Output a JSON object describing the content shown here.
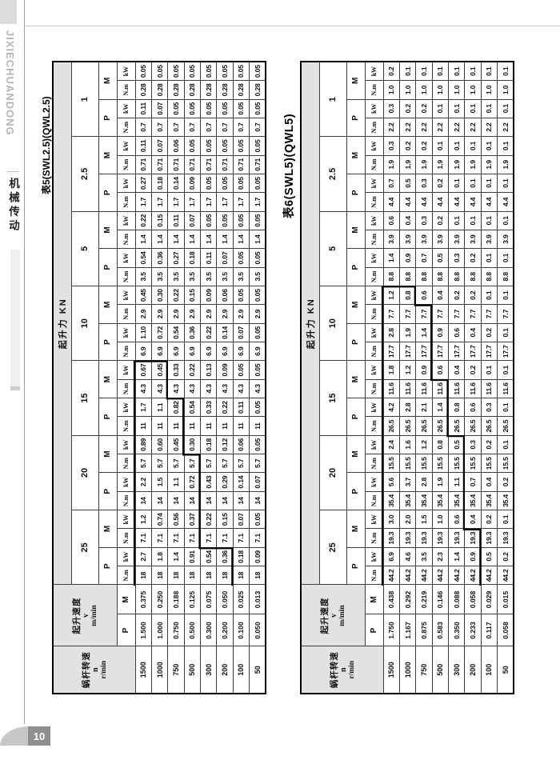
{
  "sidebar": {
    "brand": "JIXIECHUANDONG",
    "section": "机械传动"
  },
  "footer": {
    "page_number": "10"
  },
  "tables": [
    {
      "title": "表5(SWL2.5)(QWL2.5)",
      "header": {
        "n_title": "蜗杆转速",
        "n_sym": "n",
        "n_unit": "r/min",
        "v_title": "起升速度",
        "v_sym": "v",
        "v_unit": "m/min",
        "force_title": "起升力 KN",
        "groups": [
          "25",
          "20",
          "15",
          "10",
          "5",
          "2.5",
          "1"
        ],
        "p_label": "P",
        "m_label": "M",
        "torque_unit": "N.m",
        "power_unit": "kW"
      },
      "rows": [
        {
          "n": "1500",
          "vp": "1.500",
          "vm": "0.375",
          "cells": [
            "18",
            "2.7",
            "7.1",
            "1.2",
            "14",
            "2.2",
            "5.7",
            "0.89",
            "11",
            "1.7",
            "4.3",
            "0.67",
            "6.9",
            "1.10",
            "2.9",
            "0.45",
            "3.5",
            "0.54",
            "1.4",
            "0.22",
            "1.7",
            "0.27",
            "0.71",
            "0.11",
            "0.7",
            "0.11",
            "0.28",
            "0.05"
          ]
        },
        {
          "n": "1000",
          "vp": "1.000",
          "vm": "0.250",
          "cells": [
            "18",
            "1.8",
            "7.1",
            "0.74",
            "14",
            "1.5",
            "5.7",
            "0.60",
            "11",
            "1.1",
            "4.3",
            "0.45",
            "6.9",
            "0.72",
            "2.9",
            "0.30",
            "3.5",
            "0.36",
            "1.4",
            "0.15",
            "1.7",
            "0.18",
            "0.71",
            "0.07",
            "0.7",
            "0.07",
            "0.28",
            "0.05"
          ]
        },
        {
          "n": "750",
          "vp": "0.750",
          "vm": "0.188",
          "cells": [
            "18",
            "1.4",
            "7.1",
            "0.56",
            "14",
            "1.1",
            "5.7",
            "0.45",
            "11",
            "0.82",
            "4.3",
            "0.33",
            "6.9",
            "0.54",
            "2.9",
            "0.22",
            "3.5",
            "0.27",
            "1.4",
            "0.11",
            "1.7",
            "0.14",
            "0.71",
            "0.06",
            "0.7",
            "0.05",
            "0.28",
            "0.05"
          ]
        },
        {
          "n": "500",
          "vp": "0.500",
          "vm": "0.125",
          "cells": [
            "18",
            "0.91",
            "7.1",
            "0.37",
            "14",
            "0.72",
            "5.7",
            "0.30",
            "11",
            "0.54",
            "4.3",
            "0.22",
            "6.9",
            "0.36",
            "2.9",
            "0.15",
            "3.5",
            "0.18",
            "1.4",
            "0.07",
            "1.7",
            "0.09",
            "0.71",
            "0.05",
            "0.7",
            "0.05",
            "0.28",
            "0.05"
          ]
        },
        {
          "n": "300",
          "vp": "0.300",
          "vm": "0.075",
          "cells": [
            "18",
            "0.54",
            "7.1",
            "0.22",
            "14",
            "0.43",
            "5.7",
            "0.18",
            "11",
            "0.33",
            "4.3",
            "0.13",
            "6.9",
            "0.22",
            "2.9",
            "0.09",
            "3.5",
            "0.11",
            "1.4",
            "0.05",
            "1.7",
            "0.05",
            "0.71",
            "0.05",
            "0.7",
            "0.05",
            "0.28",
            "0.05"
          ]
        },
        {
          "n": "200",
          "vp": "0.200",
          "vm": "0.050",
          "cells": [
            "18",
            "0.36",
            "7.1",
            "0.15",
            "14",
            "0.29",
            "5.7",
            "0.12",
            "11",
            "0.22",
            "4.3",
            "0.09",
            "6.9",
            "0.14",
            "2.9",
            "0.06",
            "3.5",
            "0.07",
            "1.4",
            "0.05",
            "1.7",
            "0.05",
            "0.71",
            "0.05",
            "0.7",
            "0.05",
            "0.28",
            "0.05"
          ]
        },
        {
          "n": "100",
          "vp": "0.100",
          "vm": "0.025",
          "cells": [
            "18",
            "0.18",
            "7.1",
            "0.07",
            "14",
            "0.14",
            "5.7",
            "0.06",
            "11",
            "0.11",
            "4.3",
            "0.05",
            "6.9",
            "0.07",
            "2.9",
            "0.05",
            "3.5",
            "0.05",
            "1.4",
            "0.05",
            "1.7",
            "0.05",
            "0.71",
            "0.05",
            "0.7",
            "0.05",
            "0.28",
            "0.05"
          ]
        },
        {
          "n": "50",
          "vp": "0.050",
          "vm": "0.013",
          "cells": [
            "18",
            "0.09",
            "7.1",
            "0.05",
            "14",
            "0.07",
            "5.7",
            "0.05",
            "11",
            "0.05",
            "4.3",
            "0.05",
            "6.9",
            "0.05",
            "2.9",
            "0.05",
            "3.5",
            "0.05",
            "1.4",
            "0.05",
            "1.7",
            "0.05",
            "0.71",
            "0.05",
            "0.7",
            "0.05",
            "0.28",
            "0.05"
          ]
        }
      ]
    },
    {
      "title": "表6(SWL5)(QWL5)",
      "header": {
        "n_title": "蜗杆转速",
        "n_sym": "n",
        "n_unit": "r/min",
        "v_title": "起升速度",
        "v_sym": "v",
        "v_unit": "m/min",
        "force_title": "起升力 KN",
        "groups": [
          "25",
          "20",
          "15",
          "10",
          "5",
          "2.5",
          "1"
        ],
        "p_label": "P",
        "m_label": "M",
        "torque_unit": "N.m",
        "power_unit": "kW"
      },
      "rows": [
        {
          "n": "1500",
          "vp": "1.750",
          "vm": "0.438",
          "cells": [
            "44.2",
            "6.9",
            "19.3",
            "3.0",
            "35.4",
            "5.6",
            "15.5",
            "2.4",
            "26.5",
            "4.2",
            "11.6",
            "1.8",
            "17.7",
            "2.8",
            "7.7",
            "1.2",
            "8.8",
            "1.4",
            "3.9",
            "0.6",
            "4.4",
            "0.7",
            "1.9",
            "0.3",
            "2.2",
            "0.3",
            "1.0",
            "0.2"
          ]
        },
        {
          "n": "1000",
          "vp": "1.167",
          "vm": "0.292",
          "cells": [
            "44.2",
            "4.6",
            "19.3",
            "2.0",
            "35.4",
            "3.7",
            "15.5",
            "1.6",
            "26.5",
            "2.8",
            "11.6",
            "1.2",
            "17.7",
            "1.9",
            "7.7",
            "0.8",
            "8.8",
            "0.9",
            "3.9",
            "0.4",
            "4.4",
            "0.5",
            "1.9",
            "0.2",
            "2.2",
            "0.2",
            "1.0",
            "0.1"
          ]
        },
        {
          "n": "750",
          "vp": "0.875",
          "vm": "0.219",
          "cells": [
            "44.2",
            "3.5",
            "19.3",
            "1.5",
            "35.4",
            "2.8",
            "15.5",
            "1.2",
            "26.5",
            "2.1",
            "11.6",
            "0.9",
            "17.7",
            "1.4",
            "7.7",
            "0.6",
            "8.8",
            "0.7",
            "3.9",
            "0.3",
            "4.4",
            "0.3",
            "1.9",
            "0.2",
            "2.2",
            "0.2",
            "1.0",
            "0.1"
          ]
        },
        {
          "n": "500",
          "vp": "0.583",
          "vm": "0.146",
          "cells": [
            "44.2",
            "2.3",
            "19.3",
            "1.0",
            "35.4",
            "1.9",
            "15.5",
            "0.8",
            "26.5",
            "1.4",
            "11.6",
            "0.6",
            "17.7",
            "0.9",
            "7.7",
            "0.4",
            "8.8",
            "0.5",
            "3.9",
            "0.2",
            "4.4",
            "0.2",
            "1.9",
            "0.1",
            "2.2",
            "0.1",
            "1.0",
            "0.1"
          ]
        },
        {
          "n": "300",
          "vp": "0.350",
          "vm": "0.088",
          "cells": [
            "44.2",
            "1.4",
            "19.3",
            "0.6",
            "35.4",
            "1.1",
            "15.5",
            "0.5",
            "26.5",
            "0.8",
            "11.6",
            "0.4",
            "17.7",
            "0.6",
            "7.7",
            "0.2",
            "8.8",
            "0.3",
            "3.9",
            "0.1",
            "4.4",
            "0.1",
            "1.9",
            "0.1",
            "2.2",
            "0.1",
            "1.0",
            "0.1"
          ]
        },
        {
          "n": "200",
          "vp": "0.233",
          "vm": "0.058",
          "cells": [
            "44.2",
            "0.9",
            "19.3",
            "0.4",
            "35.4",
            "0.7",
            "15.5",
            "0.3",
            "26.5",
            "0.6",
            "11.6",
            "0.2",
            "17.7",
            "0.4",
            "7.7",
            "0.2",
            "8.8",
            "0.2",
            "3.9",
            "0.1",
            "4.4",
            "0.1",
            "1.9",
            "0.1",
            "2.2",
            "0.1",
            "1.0",
            "0.1"
          ]
        },
        {
          "n": "100",
          "vp": "0.117",
          "vm": "0.029",
          "cells": [
            "44.2",
            "0.5",
            "19.3",
            "0.2",
            "35.4",
            "0.4",
            "15.5",
            "0.2",
            "26.5",
            "0.3",
            "11.6",
            "0.1",
            "17.7",
            "0.2",
            "7.7",
            "0.1",
            "8.8",
            "0.1",
            "3.9",
            "0.1",
            "4.4",
            "0.1",
            "1.9",
            "0.1",
            "2.2",
            "0.1",
            "1.0",
            "0.1"
          ]
        },
        {
          "n": "50",
          "vp": "0.058",
          "vm": "0.015",
          "cells": [
            "44.2",
            "0.2",
            "19.3",
            "0.1",
            "35.4",
            "0.2",
            "15.5",
            "0.1",
            "26.5",
            "0.1",
            "11.6",
            "0.1",
            "17.7",
            "0.1",
            "7.7",
            "0.1",
            "8.8",
            "0.1",
            "3.9",
            "0.1",
            "4.4",
            "0.1",
            "1.9",
            "0.1",
            "2.2",
            "0.1",
            "1.0",
            "0.1"
          ]
        }
      ]
    }
  ]
}
